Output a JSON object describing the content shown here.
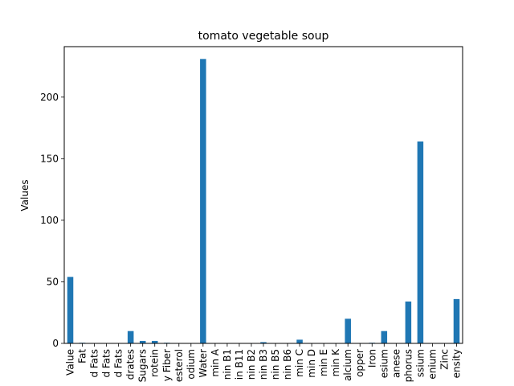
{
  "chart_data": {
    "type": "bar",
    "title": "tomato vegetable soup",
    "xlabel": "",
    "ylabel": "Values",
    "ylim": [
      0,
      241
    ],
    "yticks": [
      0,
      50,
      100,
      150,
      200
    ],
    "grid": false,
    "legend": "none",
    "bar_color": "#1f77b4",
    "categories": [
      "Value",
      "Fat",
      "d Fats",
      "d Fats",
      "d Fats",
      "drates",
      "Sugars",
      "rotein",
      "y Fiber",
      "esterol",
      "odium",
      "Water",
      "min A",
      "nin B1",
      "in B11",
      "nin B2",
      "nin B3",
      "nin B5",
      "nin B6",
      "min C",
      "min D",
      "min E",
      "min K",
      "alcium",
      "opper",
      "Iron",
      "esium",
      "anese",
      "phorus",
      "ssium",
      "enium",
      "Zinc",
      "ensity"
    ],
    "values": [
      54,
      0.5,
      0,
      0,
      0,
      10,
      2,
      2,
      0.5,
      0,
      0,
      231,
      0,
      0,
      0,
      0,
      1,
      0,
      0,
      3,
      0,
      0,
      0,
      20,
      0,
      0.5,
      10,
      0,
      34,
      164,
      0,
      0,
      36
    ]
  }
}
